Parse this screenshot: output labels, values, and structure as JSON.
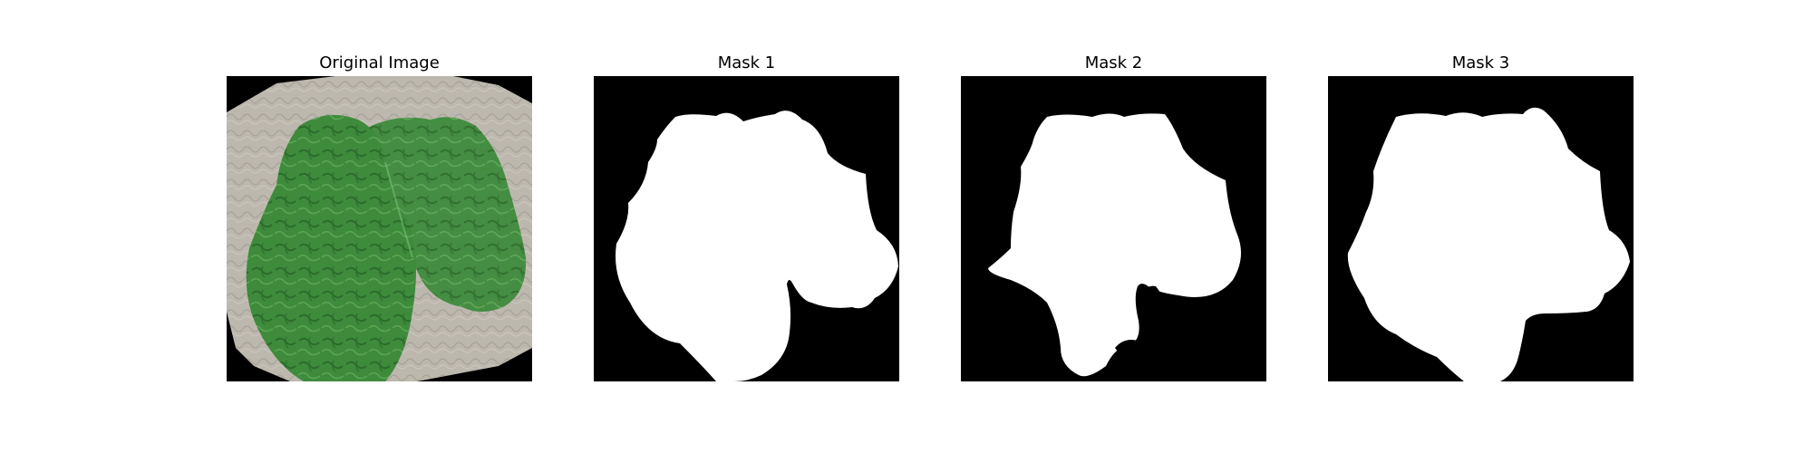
{
  "figure": {
    "panels": [
      {
        "title": "Original Image"
      },
      {
        "title": "Mask 1"
      },
      {
        "title": "Mask 2"
      },
      {
        "title": "Mask 3"
      }
    ]
  },
  "colors": {
    "background": "#ffffff",
    "mask_background": "#000000",
    "mask_foreground": "#ffffff",
    "leaf_green": "#3f8a3f",
    "paper_grey": "#b9b4ab"
  }
}
